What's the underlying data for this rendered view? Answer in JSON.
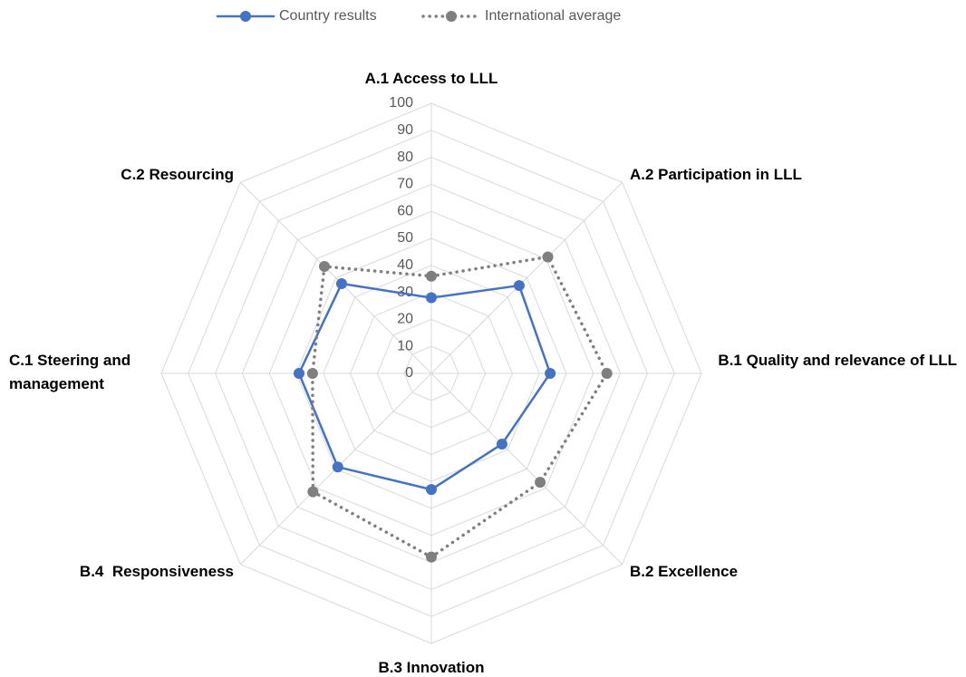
{
  "chart_data": {
    "type": "radar",
    "categories": [
      "A.1 Access to LLL",
      "A.2 Participation in LLL",
      "B.1 Quality and relevance of LLL",
      "B.2 Excellence",
      "B.3 Innovation",
      "B.4  Responsiveness",
      "C.1 Steering and management",
      "C.2 Resourcing"
    ],
    "series": [
      {
        "name": "Country results",
        "color": "#4472c4",
        "line": "solid",
        "values": [
          28,
          46,
          44,
          37,
          43,
          49,
          49,
          47
        ]
      },
      {
        "name": "International average",
        "color": "#7f7f7f",
        "line": "dotted",
        "values": [
          36,
          61,
          65,
          57,
          68,
          62,
          44,
          56
        ]
      }
    ],
    "ylim": [
      0,
      100
    ],
    "yticks": [
      0,
      10,
      20,
      30,
      40,
      50,
      60,
      70,
      80,
      90,
      100
    ],
    "grid": true,
    "legend": "top"
  }
}
